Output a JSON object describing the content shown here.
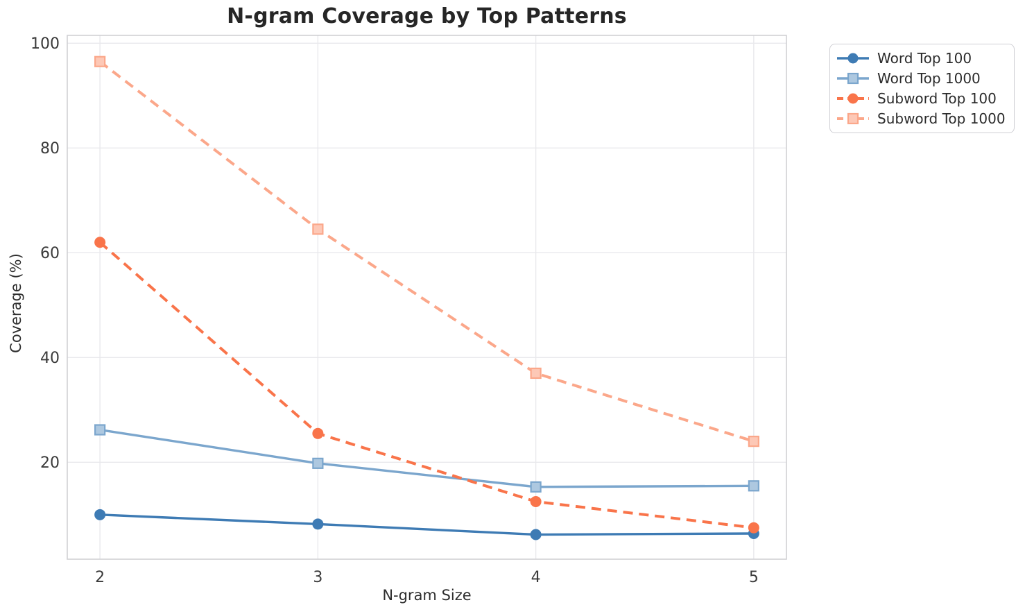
{
  "chart_data": {
    "type": "line",
    "title": "N-gram Coverage by Top Patterns",
    "xlabel": "N-gram Size",
    "ylabel": "Coverage (%)",
    "x": [
      2,
      3,
      4,
      5
    ],
    "xticks": [
      "2",
      "3",
      "4",
      "5"
    ],
    "yticks": [
      20,
      40,
      60,
      80,
      100
    ],
    "xlim": [
      1.85,
      5.15
    ],
    "ylim": [
      1.5,
      101.5
    ],
    "grid": true,
    "legend_position": "outside-upper-right",
    "series": [
      {
        "name": "Word Top 100",
        "color": "#3e7bb4",
        "linestyle": "solid",
        "marker": "circle",
        "values": [
          10.0,
          8.2,
          6.2,
          6.4
        ]
      },
      {
        "name": "Word Top 1000",
        "color": "#7ba6cd",
        "linestyle": "solid",
        "marker": "square",
        "values": [
          26.2,
          19.8,
          15.3,
          15.5
        ]
      },
      {
        "name": "Subword Top 100",
        "color": "#f9744a",
        "linestyle": "dashed",
        "marker": "circle",
        "values": [
          62.0,
          25.5,
          12.5,
          7.5
        ]
      },
      {
        "name": "Subword Top 1000",
        "color": "#fba78a",
        "linestyle": "dashed",
        "marker": "square",
        "values": [
          96.5,
          64.5,
          37.0,
          24.0
        ]
      }
    ],
    "style": {
      "grid_color": "#e9e9ec",
      "spine_color": "#d0d0d4",
      "tick_label_color": "#3b3b3b",
      "title_color": "#262626"
    }
  }
}
